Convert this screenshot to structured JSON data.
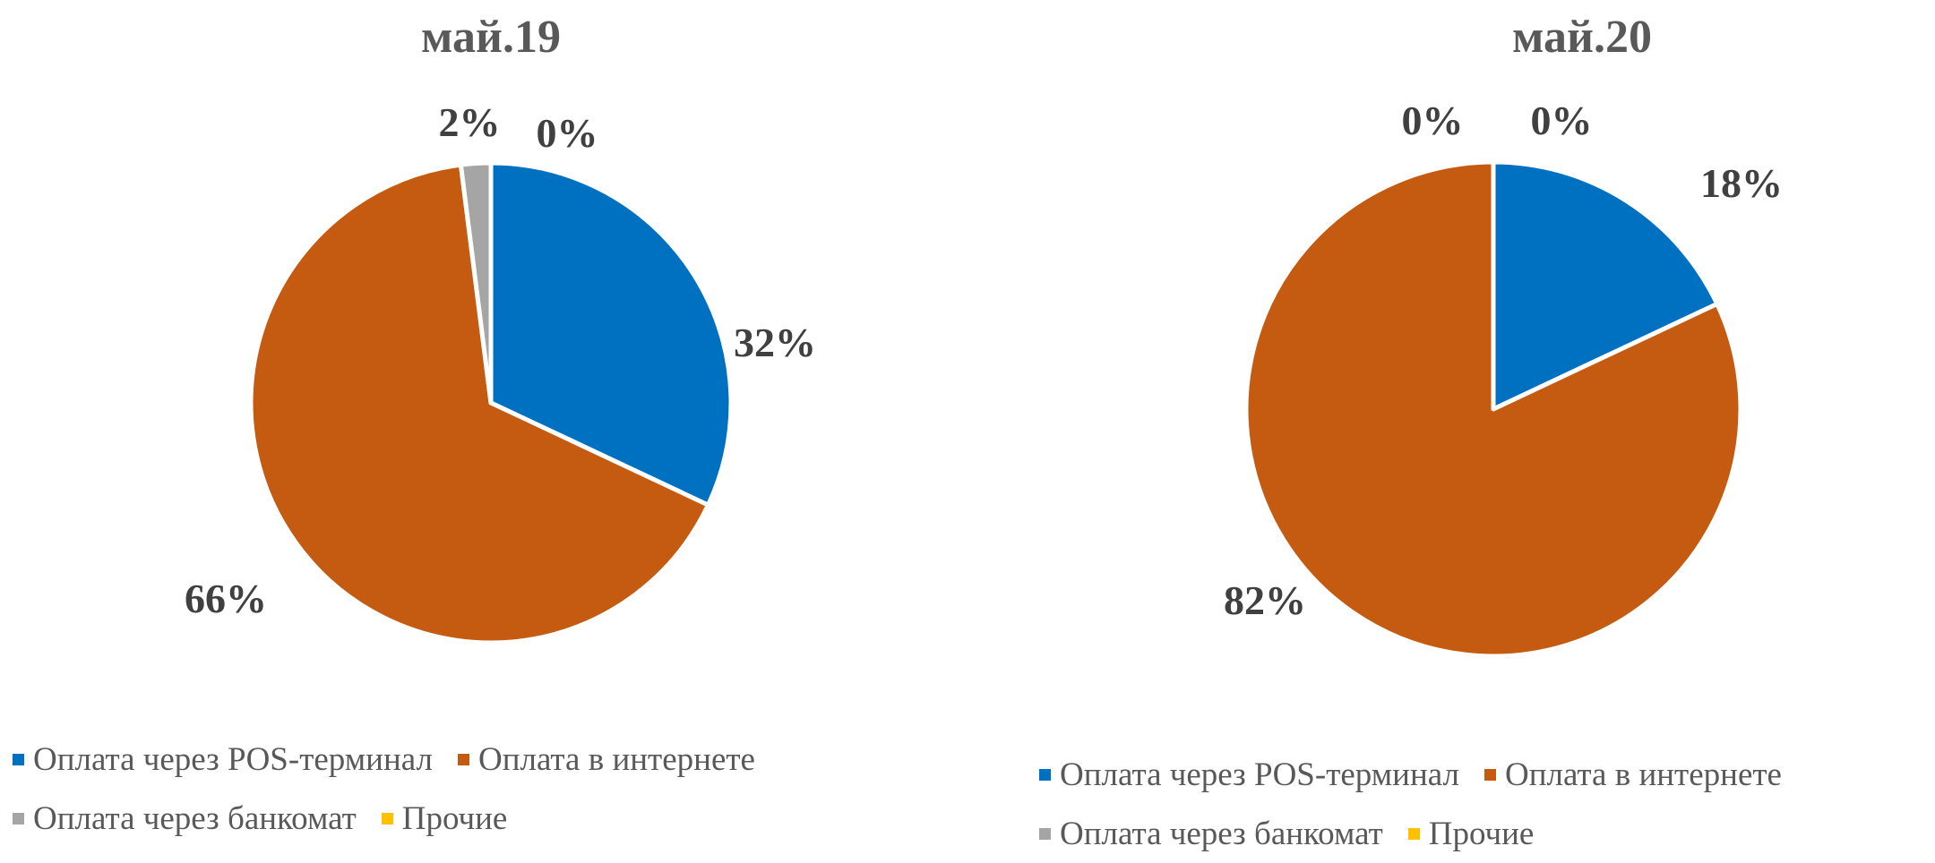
{
  "chart_data": [
    {
      "type": "pie",
      "title": "май.19",
      "categories": [
        "Оплата через POS-терминал",
        "Оплата в интернете",
        "Оплата через банкомат",
        "Прочие"
      ],
      "values": [
        32,
        66,
        2,
        0
      ],
      "labels": [
        "32%",
        "66%",
        "2%",
        "0%"
      ],
      "colors": [
        "#0070c0",
        "#c55a11",
        "#a5a5a5",
        "#ffc000"
      ],
      "legend": "bottom"
    },
    {
      "type": "pie",
      "title": "май.20",
      "categories": [
        "Оплата через POS-терминал",
        "Оплата в интернете",
        "Оплата через банкомат",
        "Прочие"
      ],
      "values": [
        18,
        82,
        0,
        0
      ],
      "labels": [
        "18%",
        "82%",
        "0%",
        "0%"
      ],
      "colors": [
        "#0070c0",
        "#c55a11",
        "#a5a5a5",
        "#ffc000"
      ],
      "legend": "bottom"
    }
  ]
}
